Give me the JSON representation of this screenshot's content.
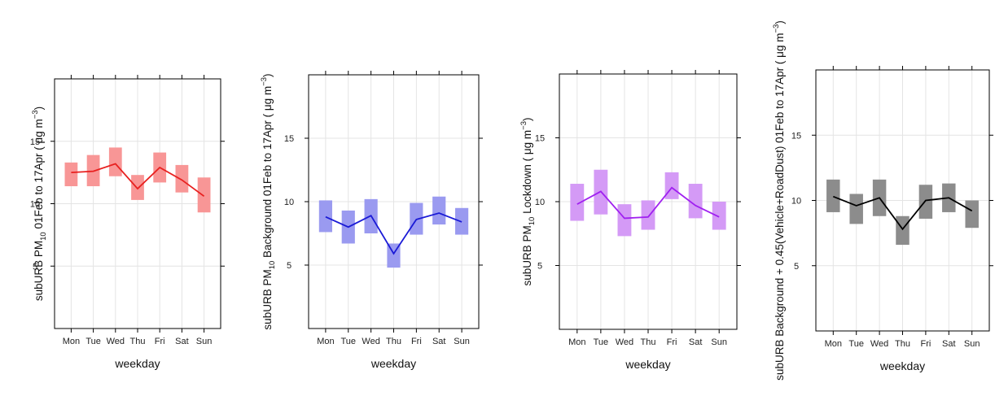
{
  "chart_data": [
    {
      "type": "line",
      "title": "",
      "xlabel": "weekday",
      "ylabel": {
        "pre": "subURB PM",
        "sub": "10",
        "post": " 01Feb to 17Apr ( μg m",
        "sup": "−3",
        "end": ")"
      },
      "categories": [
        "Mon",
        "Tue",
        "Wed",
        "Thu",
        "Fri",
        "Sat",
        "Sun"
      ],
      "yticks": [
        5,
        10,
        15
      ],
      "ylim": [
        0,
        20
      ],
      "grid": true,
      "color": "#e8201f",
      "band_color": "#f89696",
      "series": [
        {
          "values": [
            12.5,
            12.6,
            13.2,
            11.2,
            12.9,
            11.9,
            10.6
          ],
          "lower": [
            11.4,
            11.4,
            12.2,
            10.3,
            11.7,
            10.9,
            9.3
          ],
          "upper": [
            13.3,
            13.9,
            14.5,
            12.3,
            14.1,
            13.1,
            12.1
          ]
        }
      ]
    },
    {
      "type": "line",
      "title": "",
      "xlabel": "weekday",
      "ylabel": {
        "pre": "subURB PM",
        "sub": "10",
        "post": " Background 01Feb to 17Apr ( μg m",
        "sup": "−3",
        "end": ")"
      },
      "categories": [
        "Mon",
        "Tue",
        "Wed",
        "Thu",
        "Fri",
        "Sat",
        "Sun"
      ],
      "yticks": [
        5,
        10,
        15
      ],
      "ylim": [
        0,
        20
      ],
      "grid": true,
      "color": "#1a1ad6",
      "band_color": "#9a9af0",
      "series": [
        {
          "values": [
            8.8,
            8.0,
            8.9,
            5.9,
            8.6,
            9.1,
            8.4
          ],
          "lower": [
            7.6,
            6.7,
            7.5,
            4.8,
            7.4,
            8.2,
            7.4
          ],
          "upper": [
            10.1,
            9.3,
            10.2,
            6.7,
            9.9,
            10.4,
            9.5
          ]
        }
      ]
    },
    {
      "type": "line",
      "title": "",
      "xlabel": "weekday",
      "ylabel": {
        "pre": "subURB PM",
        "sub": "10",
        "post": " Lockdown ( μg m",
        "sup": "−3",
        "end": ")"
      },
      "categories": [
        "Mon",
        "Tue",
        "Wed",
        "Thu",
        "Fri",
        "Sat",
        "Sun"
      ],
      "yticks": [
        5,
        10,
        15
      ],
      "ylim": [
        0,
        20
      ],
      "grid": true,
      "color": "#a020f0",
      "band_color": "#d49af6",
      "series": [
        {
          "values": [
            9.8,
            10.8,
            8.7,
            8.8,
            11.1,
            9.7,
            8.8
          ],
          "lower": [
            8.5,
            9.0,
            7.3,
            7.8,
            10.2,
            8.7,
            7.8
          ],
          "upper": [
            11.4,
            12.5,
            9.8,
            10.1,
            12.3,
            11.4,
            10.0
          ]
        }
      ]
    },
    {
      "type": "line",
      "title": "",
      "xlabel": "weekday",
      "ylabel": {
        "pre": "subURB Background + 0.45(Vehicle+RoadDust) 01Feb to 17Apr ( μg m",
        "sub": "",
        "post": "",
        "sup": "−3",
        "end": ")"
      },
      "categories": [
        "Mon",
        "Tue",
        "Wed",
        "Thu",
        "Fri",
        "Sat",
        "Sun"
      ],
      "yticks": [
        5,
        10,
        15
      ],
      "ylim": [
        0,
        20
      ],
      "grid": true,
      "color": "#000000",
      "band_color": "#8c8c8c",
      "series": [
        {
          "values": [
            10.3,
            9.6,
            10.2,
            7.8,
            10.0,
            10.2,
            9.2
          ],
          "lower": [
            9.1,
            8.2,
            8.8,
            6.6,
            8.6,
            9.1,
            7.9
          ],
          "upper": [
            11.6,
            10.5,
            11.6,
            8.8,
            11.2,
            11.3,
            10.0
          ]
        }
      ]
    }
  ]
}
